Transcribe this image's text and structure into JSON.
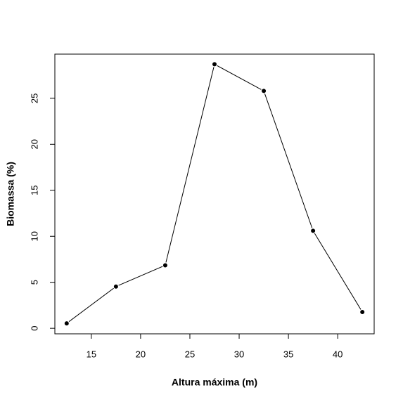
{
  "chart_data": {
    "type": "line",
    "xlabel": "Altura máxima (m)",
    "ylabel": "Biomassa (%)",
    "x": [
      12.5,
      17.5,
      22.5,
      27.5,
      32.5,
      37.5,
      42.5
    ],
    "values": [
      0.54,
      4.54,
      6.85,
      28.7,
      25.8,
      10.6,
      1.77
    ],
    "color": "#000000",
    "xlim": [
      11.3,
      43.7
    ],
    "xticks": [
      15,
      20,
      25,
      30,
      35,
      40
    ],
    "ylim": [
      -0.6,
      29.8
    ],
    "yticks": [
      0,
      5,
      10,
      15,
      20,
      25
    ]
  }
}
